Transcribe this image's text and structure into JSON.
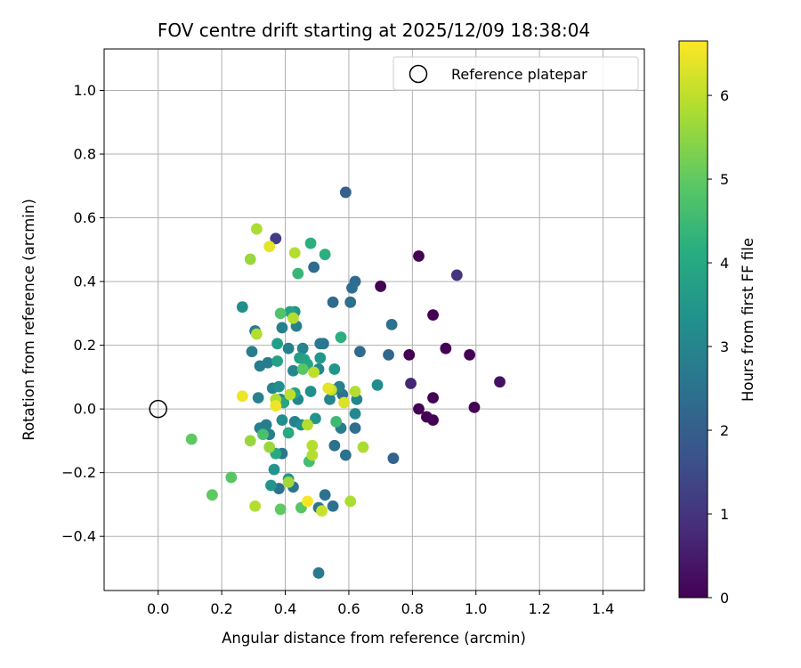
{
  "chart_data": {
    "type": "scatter",
    "title": "FOV centre drift starting at 2025/12/09 18:38:04",
    "xlabel": "Angular distance from reference (arcmin)",
    "ylabel": "Rotation from reference (arcmin)",
    "colorbar_label": "Hours from first FF file",
    "xlim": [
      -0.17,
      1.53
    ],
    "ylim": [
      -0.57,
      1.13
    ],
    "xticks": [
      0.0,
      0.2,
      0.4,
      0.6,
      0.8,
      1.0,
      1.2,
      1.4
    ],
    "xtick_labels": [
      "0.0",
      "0.2",
      "0.4",
      "0.6",
      "0.8",
      "1.0",
      "1.2",
      "1.4"
    ],
    "yticks": [
      -0.4,
      -0.2,
      0.0,
      0.2,
      0.4,
      0.6,
      0.8,
      1.0
    ],
    "ytick_labels": [
      "−0.4",
      "−0.2",
      "0.0",
      "0.2",
      "0.4",
      "0.6",
      "0.8",
      "1.0"
    ],
    "colorbar_range": [
      0,
      6.65
    ],
    "colorbar_ticks": [
      0,
      1,
      2,
      3,
      4,
      5,
      6
    ],
    "colorbar_tick_labels": [
      "0",
      "1",
      "2",
      "3",
      "4",
      "5",
      "6"
    ],
    "colormap": "viridis",
    "grid": true,
    "legend": {
      "location": "upper right",
      "entries": [
        "Reference platepar"
      ]
    },
    "reference_point": {
      "x": 0.0,
      "y": 0.0,
      "marker": "open-circle"
    },
    "points": [
      [
        0.7,
        0.385,
        0.0
      ],
      [
        0.82,
        0.48,
        0.0
      ],
      [
        0.865,
        0.295,
        0.0
      ],
      [
        0.905,
        0.19,
        0.0
      ],
      [
        0.79,
        0.17,
        0.0
      ],
      [
        0.98,
        0.17,
        0.0
      ],
      [
        0.82,
        0.0,
        0.0
      ],
      [
        0.845,
        -0.025,
        0.0
      ],
      [
        0.865,
        -0.035,
        0.0
      ],
      [
        0.865,
        0.035,
        0.0
      ],
      [
        0.995,
        0.005,
        0.0
      ],
      [
        1.075,
        0.085,
        0.3
      ],
      [
        0.795,
        0.08,
        0.7
      ],
      [
        0.94,
        0.42,
        1.0
      ],
      [
        0.37,
        0.535,
        1.2
      ],
      [
        0.59,
        0.68,
        2.0
      ],
      [
        0.74,
        -0.155,
        2.1
      ],
      [
        0.725,
        0.17,
        2.2
      ],
      [
        0.735,
        0.265,
        2.5
      ],
      [
        0.635,
        0.18,
        2.3
      ],
      [
        0.62,
        0.4,
        2.3
      ],
      [
        0.61,
        0.38,
        2.4
      ],
      [
        0.605,
        0.335,
        2.4
      ],
      [
        0.55,
        0.335,
        2.3
      ],
      [
        0.49,
        0.445,
        2.3
      ],
      [
        0.52,
        0.205,
        2.6
      ],
      [
        0.58,
        0.045,
        2.5
      ],
      [
        0.62,
        -0.06,
        2.4
      ],
      [
        0.59,
        -0.145,
        2.5
      ],
      [
        0.555,
        -0.115,
        2.5
      ],
      [
        0.525,
        -0.27,
        2.5
      ],
      [
        0.55,
        -0.305,
        2.5
      ],
      [
        0.505,
        -0.31,
        2.6
      ],
      [
        0.505,
        -0.515,
        2.7
      ],
      [
        0.425,
        -0.245,
        2.6
      ],
      [
        0.38,
        -0.25,
        2.5
      ],
      [
        0.39,
        -0.14,
        2.6
      ],
      [
        0.305,
        0.245,
        2.7
      ],
      [
        0.295,
        0.18,
        2.8
      ],
      [
        0.32,
        0.135,
        2.8
      ],
      [
        0.345,
        0.145,
        2.8
      ],
      [
        0.315,
        0.035,
        2.9
      ],
      [
        0.32,
        -0.06,
        2.9
      ],
      [
        0.34,
        -0.05,
        2.8
      ],
      [
        0.35,
        -0.08,
        2.8
      ],
      [
        0.36,
        0.065,
        3.0
      ],
      [
        0.385,
        0.03,
        3.0
      ],
      [
        0.39,
        0.255,
        2.9
      ],
      [
        0.41,
        0.19,
        2.9
      ],
      [
        0.425,
        0.12,
        3.0
      ],
      [
        0.43,
        -0.04,
        2.9
      ],
      [
        0.435,
        0.26,
        2.9
      ],
      [
        0.44,
        0.03,
        3.0
      ],
      [
        0.455,
        0.19,
        3.0
      ],
      [
        0.505,
        0.125,
        3.0
      ],
      [
        0.51,
        0.205,
        2.7
      ],
      [
        0.54,
        0.03,
        3.0
      ],
      [
        0.55,
        0.06,
        3.0
      ],
      [
        0.57,
        0.07,
        2.9
      ],
      [
        0.575,
        -0.06,
        2.8
      ],
      [
        0.625,
        0.03,
        3.0
      ],
      [
        0.62,
        -0.015,
        3.1
      ],
      [
        0.69,
        0.075,
        3.2
      ],
      [
        0.265,
        0.32,
        3.3
      ],
      [
        0.38,
        0.07,
        3.3
      ],
      [
        0.39,
        -0.035,
        3.2
      ],
      [
        0.45,
        -0.05,
        3.2
      ],
      [
        0.48,
        0.055,
        3.3
      ],
      [
        0.43,
        0.305,
        3.4
      ],
      [
        0.365,
        -0.19,
        3.4
      ],
      [
        0.355,
        -0.24,
        3.4
      ],
      [
        0.41,
        -0.22,
        3.5
      ],
      [
        0.495,
        -0.03,
        3.4
      ],
      [
        0.555,
        0.125,
        3.5
      ],
      [
        0.51,
        0.16,
        3.5
      ],
      [
        0.375,
        0.205,
        3.7
      ],
      [
        0.415,
        0.305,
        3.8
      ],
      [
        0.375,
        0.15,
        3.8
      ],
      [
        0.445,
        0.16,
        3.7
      ],
      [
        0.46,
        0.155,
        3.8
      ],
      [
        0.47,
        0.14,
        3.9
      ],
      [
        0.43,
        0.05,
        3.8
      ],
      [
        0.395,
        0.02,
        3.9
      ],
      [
        0.41,
        -0.075,
        4.0
      ],
      [
        0.37,
        -0.14,
        4.0
      ],
      [
        0.48,
        0.52,
        4.2
      ],
      [
        0.525,
        0.485,
        4.2
      ],
      [
        0.44,
        0.425,
        4.4
      ],
      [
        0.575,
        0.225,
        4.2
      ],
      [
        0.56,
        -0.04,
        4.5
      ],
      [
        0.475,
        -0.165,
        4.6
      ],
      [
        0.33,
        -0.08,
        4.7
      ],
      [
        0.385,
        0.3,
        4.8
      ],
      [
        0.455,
        0.125,
        4.9
      ],
      [
        0.45,
        -0.31,
        4.9
      ],
      [
        0.385,
        -0.315,
        5.0
      ],
      [
        0.23,
        -0.215,
        4.9
      ],
      [
        0.17,
        -0.27,
        5.0
      ],
      [
        0.105,
        -0.095,
        5.0
      ],
      [
        0.29,
        0.47,
        5.6
      ],
      [
        0.31,
        0.565,
        5.8
      ],
      [
        0.425,
        0.285,
        5.9
      ],
      [
        0.43,
        0.49,
        5.9
      ],
      [
        0.31,
        0.235,
        5.9
      ],
      [
        0.29,
        -0.1,
        5.6
      ],
      [
        0.305,
        -0.305,
        5.9
      ],
      [
        0.35,
        -0.12,
        5.6
      ],
      [
        0.41,
        -0.23,
        5.7
      ],
      [
        0.37,
        0.03,
        5.8
      ],
      [
        0.415,
        0.045,
        6.0
      ],
      [
        0.49,
        0.115,
        6.0
      ],
      [
        0.47,
        -0.05,
        5.9
      ],
      [
        0.485,
        -0.115,
        5.9
      ],
      [
        0.485,
        -0.145,
        5.9
      ],
      [
        0.545,
        0.06,
        6.1
      ],
      [
        0.62,
        0.055,
        5.9
      ],
      [
        0.645,
        -0.12,
        5.8
      ],
      [
        0.605,
        -0.29,
        5.8
      ],
      [
        0.515,
        -0.32,
        6.1
      ],
      [
        0.35,
        0.51,
        6.4
      ],
      [
        0.265,
        0.04,
        6.5
      ],
      [
        0.37,
        0.01,
        6.5
      ],
      [
        0.535,
        0.065,
        6.4
      ],
      [
        0.585,
        0.02,
        6.3
      ],
      [
        0.47,
        -0.29,
        6.6
      ]
    ]
  }
}
